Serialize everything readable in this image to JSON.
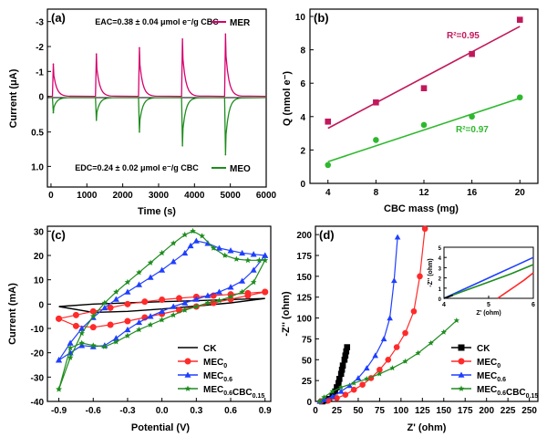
{
  "chart_data": [
    {
      "panel": "(a)",
      "type": "line",
      "xlabel": "Time (s)",
      "ylabel": "Current (μA)",
      "xlim": [
        -100,
        6000
      ],
      "xticks": [
        "0",
        "1000",
        "2000",
        "3000",
        "4000",
        "5000",
        "6000"
      ],
      "top_yticks": [
        "-3",
        "-2",
        "-1",
        "0"
      ],
      "bottom_yticks": [
        "0.5",
        "1.0"
      ],
      "top_ylim": [
        -3.5,
        0.05
      ],
      "bottom_ylim": [
        0,
        1.3
      ],
      "annotation_top": "EAC=0.38 ± 0.04 μmol e⁻/g CBC",
      "annotation_bottom": "EDC=0.24 ± 0.02 μmol e⁻/g CBC",
      "series": [
        {
          "name": "MER",
          "color": "#d6006e",
          "spike_times": [
            40,
            1240,
            2440,
            3640,
            4840
          ],
          "spike_values": [
            -1.3,
            -1.7,
            -1.95,
            -2.3,
            -2.5
          ]
        },
        {
          "name": "MEO",
          "color": "#1e8c1e",
          "spike_times": [
            40,
            1240,
            2440,
            3640,
            4840
          ],
          "spike_values": [
            0.22,
            0.33,
            0.5,
            0.7,
            0.83
          ]
        }
      ]
    },
    {
      "panel": "(b)",
      "type": "scatter",
      "xlabel": "CBC mass (mg)",
      "ylabel": "Q (nmol e⁻)",
      "xlim": [
        2.5,
        21.5
      ],
      "ylim": [
        0,
        10
      ],
      "xticks": [
        "4",
        "8",
        "12",
        "16",
        "20"
      ],
      "yticks": [
        "0",
        "2",
        "4",
        "6",
        "8",
        "10"
      ],
      "series": [
        {
          "name": "",
          "marker": "square",
          "color": "#c2185b",
          "x": [
            4,
            8,
            12,
            16,
            20
          ],
          "y": [
            3.7,
            4.85,
            5.7,
            7.75,
            9.8
          ],
          "fit": [
            [
              4,
              3.3
            ],
            [
              20,
              9.4
            ]
          ],
          "r2_label": "R²=0.95"
        },
        {
          "name": "",
          "marker": "circle",
          "color": "#2eb82e",
          "x": [
            4,
            8,
            12,
            16,
            20
          ],
          "y": [
            1.1,
            2.6,
            3.5,
            4.0,
            5.15
          ],
          "fit": [
            [
              4,
              1.3
            ],
            [
              20,
              5.1
            ]
          ],
          "r2_label": "R²=0.97"
        }
      ]
    },
    {
      "panel": "(c)",
      "type": "line",
      "xlabel": "Potential (V)",
      "ylabel": "Current (mA)",
      "xlim": [
        -1.0,
        0.95
      ],
      "ylim": [
        -40,
        32
      ],
      "xticks": [
        "-0.9",
        "-0.6",
        "-0.3",
        "0.0",
        "0.3",
        "0.6",
        "0.9"
      ],
      "yticks": [
        "-40",
        "-30",
        "-20",
        "-10",
        "0",
        "10",
        "20",
        "30"
      ],
      "legend": [
        "CK",
        "MEC0",
        "MEC0.6",
        "MEC0.6CBC0.15"
      ],
      "series": [
        {
          "name": "CK",
          "color": "#000000",
          "marker": "none",
          "x": [
            -0.9,
            -0.6,
            -0.3,
            0.0,
            0.3,
            0.6,
            0.9,
            0.9,
            0.6,
            0.3,
            0.0,
            -0.3,
            -0.6,
            -0.9
          ],
          "y": [
            -1.0,
            0.0,
            0.5,
            1.0,
            1.4,
            1.9,
            2.3,
            2.3,
            0.5,
            -0.8,
            -2.0,
            -3.0,
            -3.4,
            -1.0
          ]
        },
        {
          "name": "MEC0",
          "color": "#ff2a2a",
          "marker": "circle",
          "x": [
            -0.9,
            -0.75,
            -0.6,
            -0.45,
            -0.3,
            -0.15,
            0.0,
            0.15,
            0.3,
            0.45,
            0.6,
            0.75,
            0.9,
            0.9,
            0.75,
            0.6,
            0.45,
            0.3,
            0.15,
            0.0,
            -0.15,
            -0.3,
            -0.45,
            -0.6,
            -0.75,
            -0.9
          ],
          "y": [
            -6.0,
            -4.5,
            -3.0,
            -1.5,
            0.0,
            1.0,
            1.8,
            2.4,
            3.0,
            3.5,
            4.0,
            4.5,
            5.0,
            5.0,
            3.5,
            2.0,
            0.5,
            -1.0,
            -2.5,
            -4.0,
            -5.5,
            -7.0,
            -8.5,
            -9.5,
            -9.0,
            -6.0
          ]
        },
        {
          "name": "MEC0.6",
          "color": "#1f3fff",
          "marker": "triangle",
          "x": [
            -0.9,
            -0.8,
            -0.7,
            -0.6,
            -0.5,
            -0.4,
            -0.3,
            -0.2,
            -0.1,
            0.0,
            0.1,
            0.2,
            0.25,
            0.3,
            0.4,
            0.5,
            0.6,
            0.7,
            0.8,
            0.9,
            0.9,
            0.8,
            0.7,
            0.6,
            0.5,
            0.4,
            0.3,
            0.2,
            0.1,
            0.0,
            -0.1,
            -0.2,
            -0.3,
            -0.4,
            -0.5,
            -0.6,
            -0.7,
            -0.8,
            -0.9
          ],
          "y": [
            -23.0,
            -16.0,
            -10.0,
            -5.5,
            -1.5,
            2.0,
            5.0,
            8.0,
            11.0,
            14.0,
            17.5,
            21.0,
            24.0,
            26.0,
            25.0,
            23.0,
            22.0,
            21.0,
            20.5,
            20.0,
            20.0,
            14.0,
            9.5,
            7.0,
            5.0,
            3.5,
            2.0,
            0.5,
            -1.0,
            -3.0,
            -5.0,
            -7.5,
            -10.5,
            -14.0,
            -17.0,
            -17.5,
            -17.0,
            -20.0,
            -23.0
          ]
        },
        {
          "name": "MEC0.6CBC0.15",
          "color": "#1e8c1e",
          "marker": "star",
          "x": [
            -0.9,
            -0.8,
            -0.7,
            -0.6,
            -0.5,
            -0.4,
            -0.3,
            -0.2,
            -0.1,
            0.0,
            0.1,
            0.2,
            0.27,
            0.35,
            0.45,
            0.55,
            0.65,
            0.75,
            0.85,
            0.9,
            0.9,
            0.8,
            0.7,
            0.6,
            0.5,
            0.4,
            0.3,
            0.2,
            0.1,
            0.0,
            -0.1,
            -0.2,
            -0.3,
            -0.4,
            -0.5,
            -0.6,
            -0.7,
            -0.8,
            -0.9
          ],
          "y": [
            -35.0,
            -22.0,
            -12.0,
            -5.0,
            0.5,
            5.0,
            9.0,
            13.0,
            17.0,
            21.0,
            25.0,
            28.5,
            30.0,
            28.0,
            23.0,
            20.0,
            18.5,
            18.0,
            18.0,
            18.0,
            18.0,
            9.0,
            5.0,
            3.0,
            1.5,
            0.5,
            -1.0,
            -2.5,
            -4.5,
            -6.5,
            -8.5,
            -10.5,
            -13.0,
            -15.5,
            -17.5,
            -17.0,
            -16.0,
            -18.0,
            -35.0
          ]
        }
      ]
    },
    {
      "panel": "(d)",
      "type": "line",
      "xlabel": "Z' (ohm)",
      "ylabel": "-Z'' (ohm)",
      "xlim": [
        0,
        260
      ],
      "ylim": [
        0,
        210
      ],
      "xticks": [
        "0",
        "25",
        "50",
        "75",
        "100",
        "125",
        "150",
        "175",
        "200",
        "225",
        "250"
      ],
      "yticks": [
        "0",
        "25",
        "50",
        "75",
        "100",
        "125",
        "150",
        "175",
        "200"
      ],
      "legend": [
        "CK",
        "MEC0",
        "MEC0.6",
        "MEC0.6CBC0.15"
      ],
      "series": [
        {
          "name": "CK",
          "color": "#000000",
          "marker": "square",
          "x": [
            8,
            12,
            16,
            20,
            23,
            25,
            27,
            28,
            30,
            31,
            32,
            34,
            35,
            36,
            37
          ],
          "y": [
            0,
            1,
            3,
            7,
            12,
            17,
            22,
            27,
            33,
            38,
            43,
            50,
            55,
            60,
            65
          ]
        },
        {
          "name": "MEC0",
          "color": "#ff2a2a",
          "marker": "circle",
          "x": [
            6,
            15,
            25,
            35,
            45,
            55,
            65,
            75,
            85,
            95,
            105,
            115,
            122,
            128
          ],
          "y": [
            0,
            1,
            4,
            8,
            14,
            20,
            28,
            38,
            50,
            65,
            82,
            108,
            150,
            207
          ]
        },
        {
          "name": "MEC0.6",
          "color": "#1f3fff",
          "marker": "triangle",
          "x": [
            5,
            10,
            20,
            30,
            40,
            50,
            60,
            70,
            80,
            87,
            92,
            96
          ],
          "y": [
            0,
            2,
            6,
            12,
            19,
            28,
            40,
            55,
            75,
            100,
            145,
            197
          ]
        },
        {
          "name": "MEC0.6CBC0.15",
          "color": "#1e8c1e",
          "marker": "star",
          "x": [
            5,
            10,
            20,
            30,
            45,
            60,
            75,
            90,
            105,
            120,
            135,
            150,
            165
          ],
          "y": [
            0,
            5,
            12,
            17,
            22,
            27,
            33,
            40,
            48,
            58,
            70,
            83,
            97
          ]
        }
      ],
      "inset": {
        "xlabel": "Z' (ohm)",
        "ylabel": "-Z'' (ohm)",
        "xlim": [
          4,
          6
        ],
        "ylim": [
          0,
          5
        ],
        "xticks": [
          "4",
          "5",
          "6"
        ],
        "yticks": [
          "0",
          "1",
          "2",
          "3",
          "4",
          "5"
        ],
        "series": [
          {
            "name": "MEC0",
            "color": "#ff2a2a",
            "x": [
              5.2,
              5.4,
              5.6,
              5.8,
              6.0
            ],
            "y": [
              0.0,
              0.6,
              1.2,
              1.8,
              2.5
            ]
          },
          {
            "name": "MEC0.6",
            "color": "#1f3fff",
            "x": [
              4.0,
              4.4,
              4.8,
              5.2,
              5.6,
              6.0
            ],
            "y": [
              0.0,
              0.8,
              1.6,
              2.4,
              3.2,
              4.0
            ]
          },
          {
            "name": "MEC0.6CBC0.15",
            "color": "#1e8c1e",
            "x": [
              4.0,
              4.5,
              5.0,
              5.5,
              6.0
            ],
            "y": [
              0.0,
              0.8,
              1.6,
              2.4,
              3.3
            ]
          },
          {
            "name": "CK",
            "color": "#000000",
            "x": [
              4.0,
              4.2
            ],
            "y": [
              0.0,
              0.3
            ]
          }
        ]
      }
    }
  ],
  "legend_labels": {
    "ck": "CK",
    "mec0_base": "MEC",
    "mec0_sub": "0",
    "mec06_base": "MEC",
    "mec06_sub": "0.6",
    "mec06cbc_base": "MEC",
    "mec06cbc_sub1": "0.6",
    "mec06cbc_mid": "CBC",
    "mec06cbc_sub2": "0.15"
  }
}
